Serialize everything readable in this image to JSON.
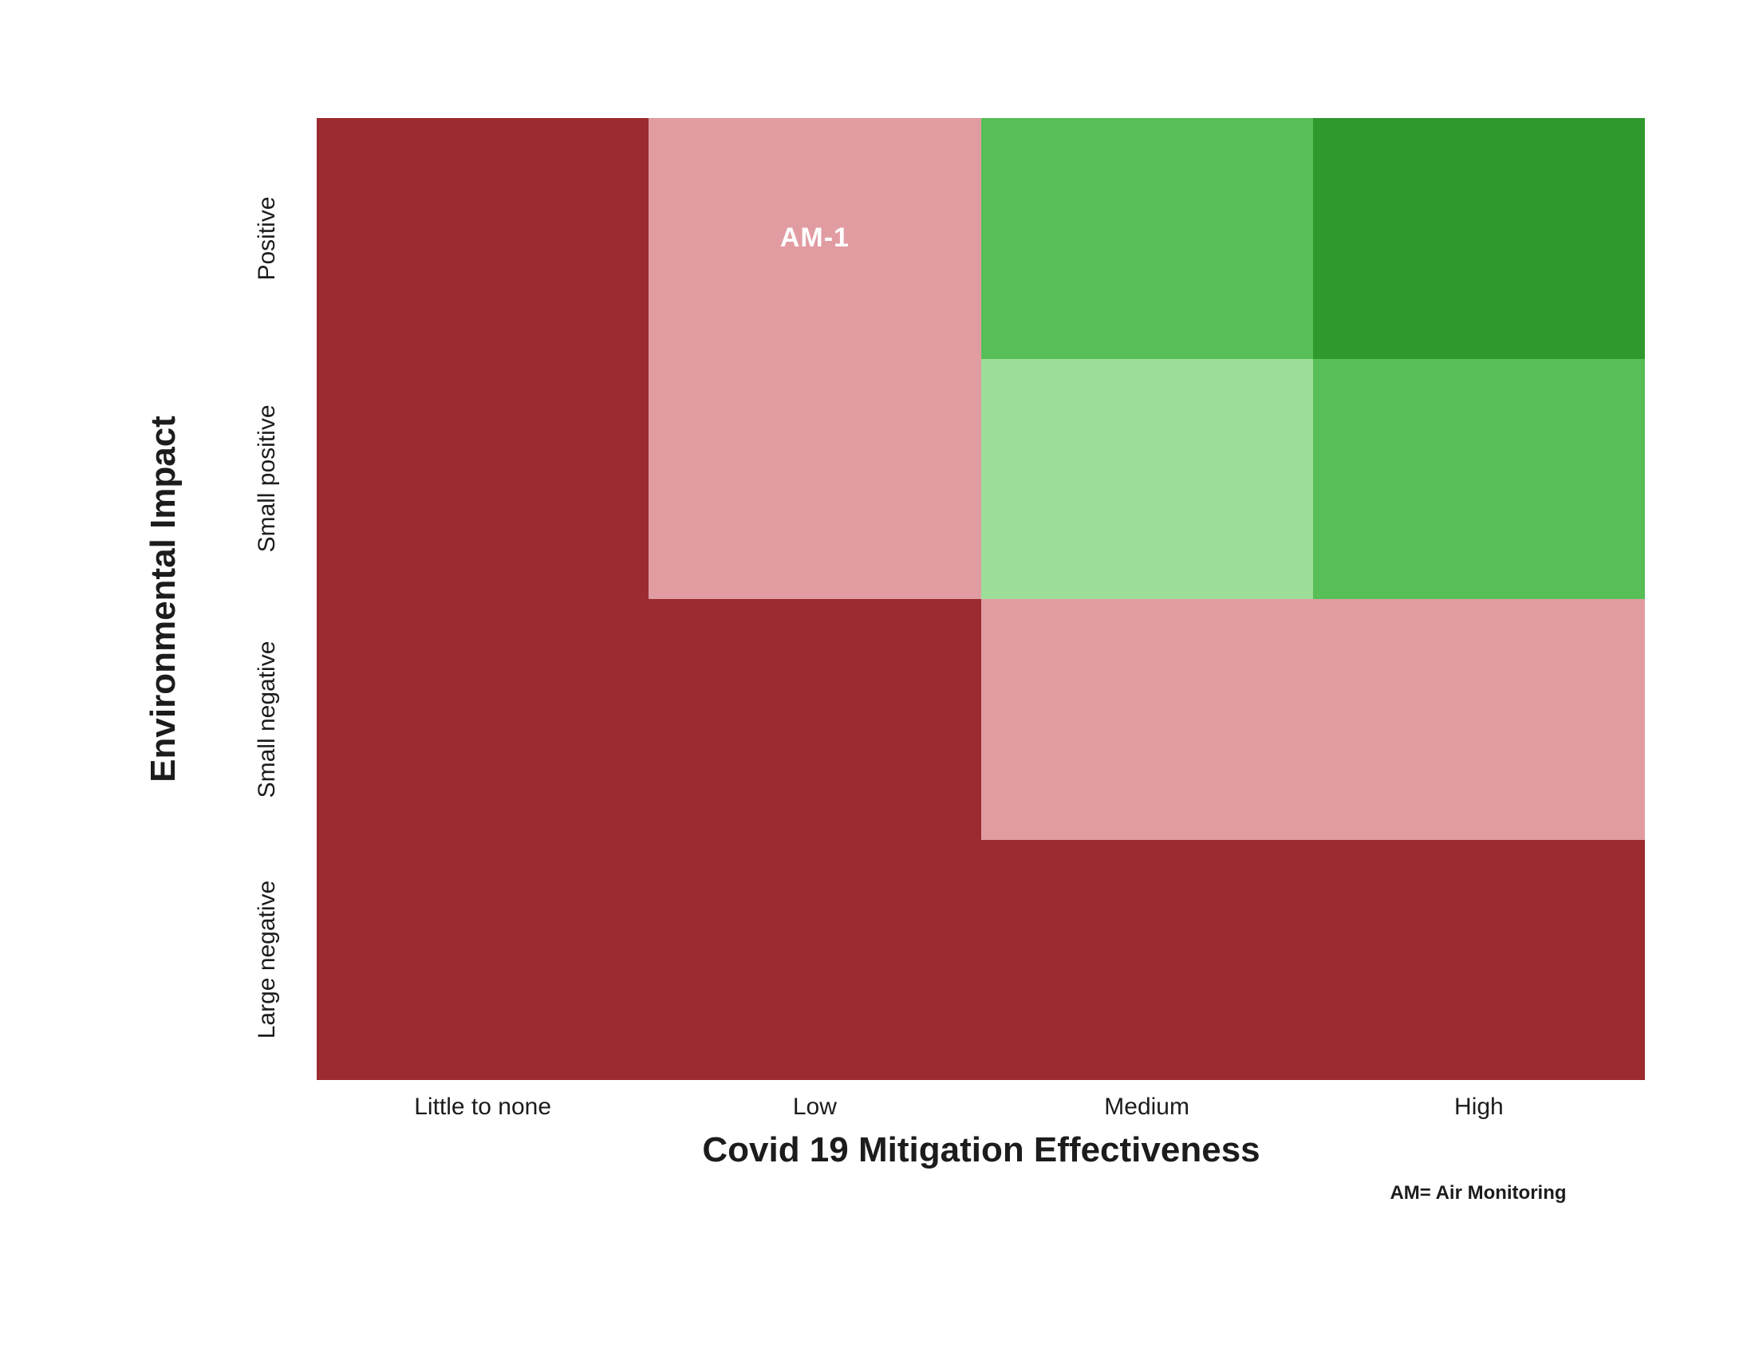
{
  "chart_data": {
    "type": "heatmap",
    "title": "",
    "xlabel": "Covid 19 Mitigation Effectiveness",
    "ylabel": "Environmental Impact",
    "x_categories": [
      "Little to none",
      "Low",
      "Medium",
      "High"
    ],
    "y_categories": [
      "Positive",
      "Small positive",
      "Small negative",
      "Large negative"
    ],
    "y_category_order": "top-to-bottom",
    "footnote": "AM= Air Monitoring",
    "legend_position": "none",
    "grid_lines": "off",
    "colors": {
      "dark_red": "#9B2B2F",
      "pink": "#E19CA2",
      "light_green": "#9CDE97",
      "medium_green": "#58BE58",
      "dark_green": "#2F992E"
    },
    "grid": [
      [
        "dark_red",
        "pink",
        "medium_green",
        "dark_green"
      ],
      [
        "dark_red",
        "pink",
        "light_green",
        "medium_green"
      ],
      [
        "dark_red",
        "dark_red",
        "pink",
        "pink"
      ],
      [
        "dark_red",
        "dark_red",
        "dark_red",
        "dark_red"
      ]
    ],
    "cell_labels": [
      [
        "",
        "AM-1",
        "",
        ""
      ],
      [
        "",
        "",
        "",
        ""
      ],
      [
        "",
        "",
        "",
        ""
      ],
      [
        "",
        "",
        "",
        ""
      ]
    ],
    "annotations": [
      {
        "text": "AM-1",
        "row": "Positive",
        "column": "Low",
        "text_color": "#FFFFFF"
      }
    ]
  }
}
